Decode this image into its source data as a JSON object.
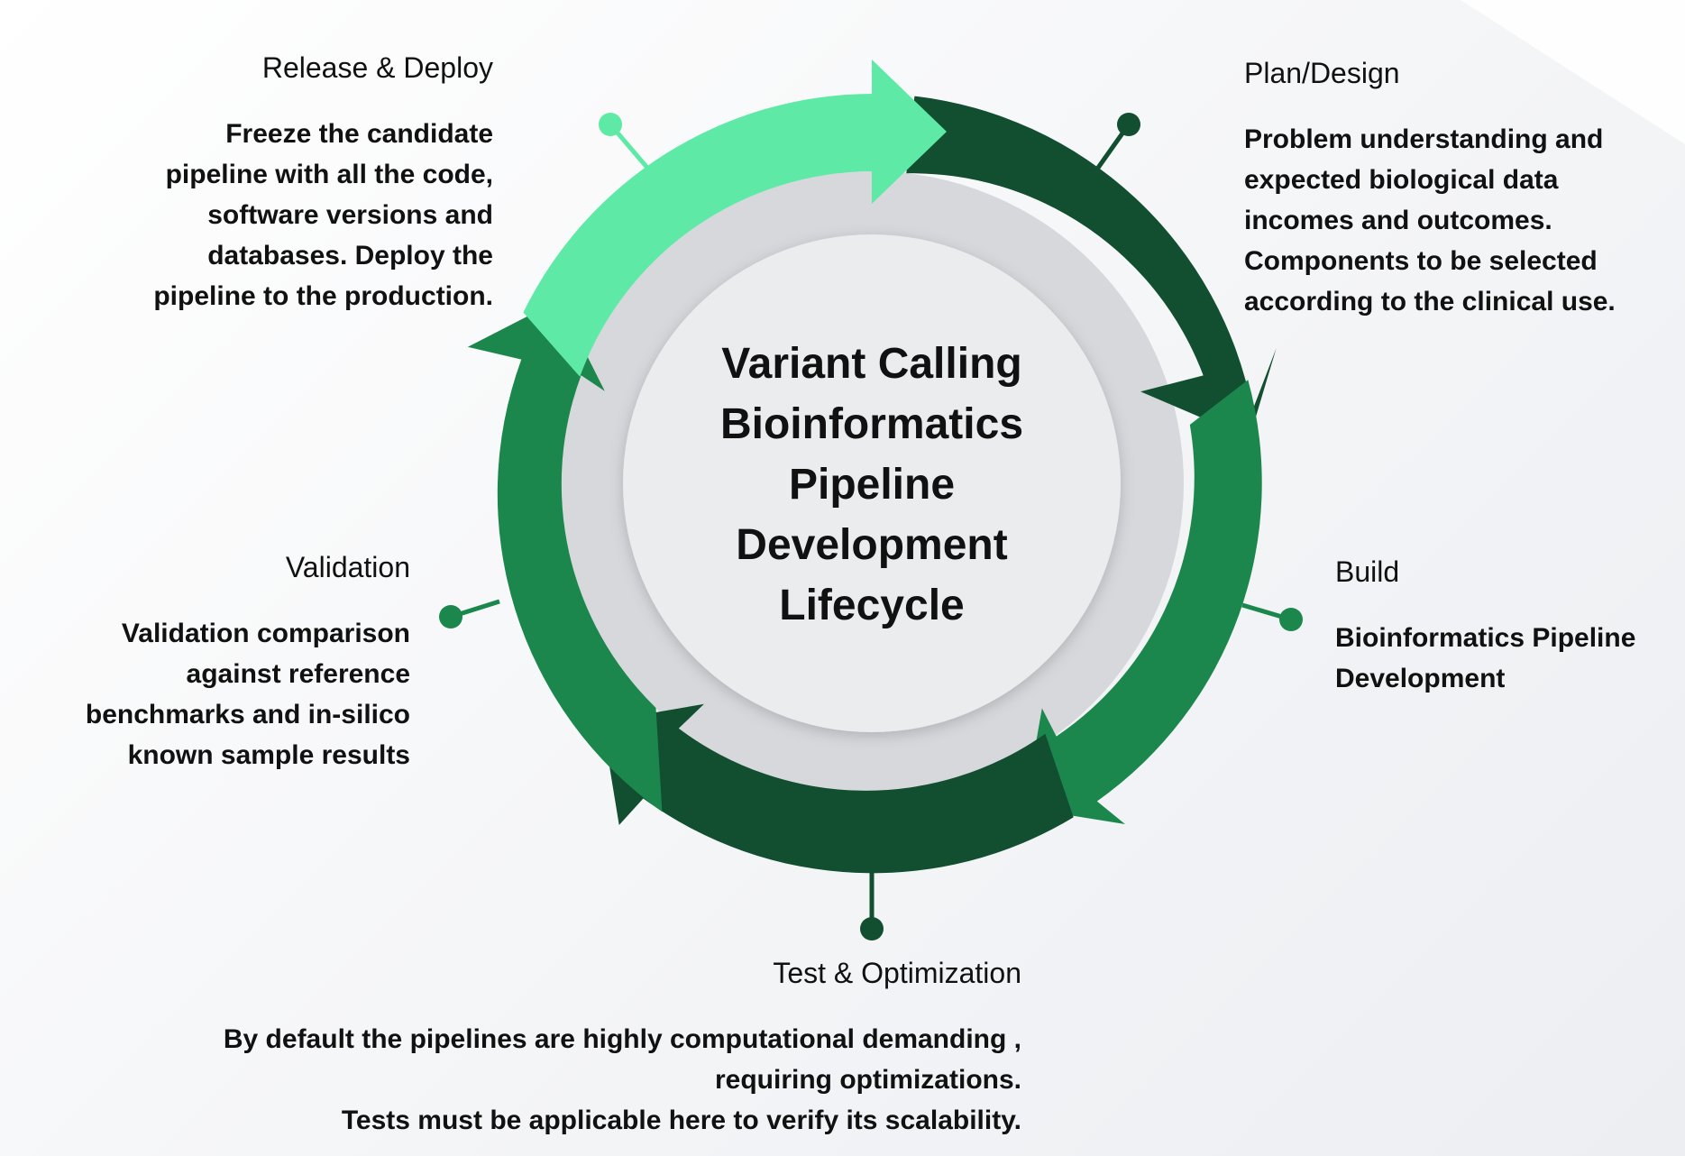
{
  "title_lines": [
    "Variant Calling",
    "Bioinformatics",
    "Pipeline",
    "Development",
    "Lifecycle"
  ],
  "colors": {
    "light_green": "#5eeaa6",
    "medium_green": "#1b874d",
    "dark_green": "#124e30",
    "inner_ring": "#d6d8dc",
    "center": "#ebecee"
  },
  "stages": {
    "release": {
      "heading": "Release & Deploy",
      "lines": [
        "Freeze the candidate",
        "pipeline with all the code,",
        "software versions and",
        "databases. Deploy the",
        "pipeline to the production."
      ]
    },
    "plan": {
      "heading": "Plan/Design",
      "lines": [
        "Problem understanding and",
        "expected biological data",
        "incomes and outcomes.",
        "Components to be selected",
        "according to the clinical use."
      ]
    },
    "build": {
      "heading": "Build",
      "lines": [
        "Bioinformatics Pipeline",
        "Development"
      ]
    },
    "validation": {
      "heading": "Validation",
      "lines": [
        "Validation comparison",
        "against reference",
        "benchmarks and in-silico",
        "known sample results"
      ]
    },
    "test": {
      "heading": "Test & Optimization",
      "lines": [
        "By default the pipelines are highly computational demanding ,",
        "requiring optimizations.",
        "Tests must be applicable here to verify its scalability."
      ]
    }
  }
}
